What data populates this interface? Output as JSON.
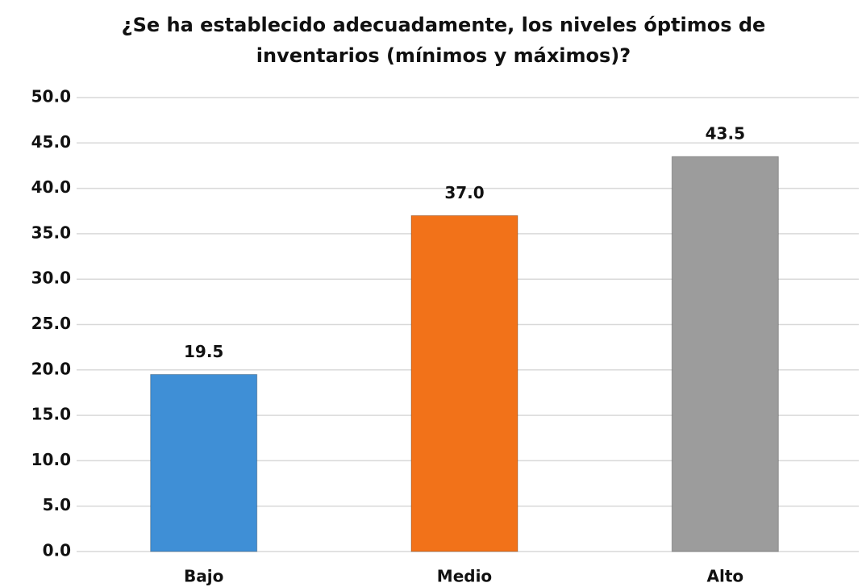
{
  "chart_data": {
    "type": "bar",
    "title": "¿Se ha establecido adecuadamente, los niveles óptimos de inventarios (mínimos y máximos)?",
    "categories": [
      "Bajo",
      "Medio",
      "Alto"
    ],
    "values": [
      19.5,
      37.0,
      43.5
    ],
    "value_labels": [
      "19.5",
      "37.0",
      "43.5"
    ],
    "colors": [
      "#3f8fd6",
      "#f27219",
      "#9c9c9c"
    ],
    "ylim": [
      0,
      50
    ],
    "yticks": [
      {
        "value": 0,
        "label": "0.0"
      },
      {
        "value": 5,
        "label": "5.0"
      },
      {
        "value": 10,
        "label": "10.0"
      },
      {
        "value": 15,
        "label": "15.0"
      },
      {
        "value": 20,
        "label": "20.0"
      },
      {
        "value": 25,
        "label": "25.0"
      },
      {
        "value": 30,
        "label": "30.0"
      },
      {
        "value": 35,
        "label": "35.0"
      },
      {
        "value": 40,
        "label": "40.0"
      },
      {
        "value": 45,
        "label": "45.0"
      },
      {
        "value": 50,
        "label": "50.0"
      }
    ],
    "grid": true
  }
}
